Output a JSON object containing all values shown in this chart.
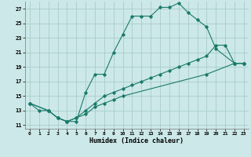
{
  "xlabel": "Humidex (Indice chaleur)",
  "bg_color": "#cce8e8",
  "grid_color": "#aacccc",
  "line_color": "#1a7a6a",
  "xlim": [
    -0.5,
    23.5
  ],
  "ylim": [
    10.5,
    28.0
  ],
  "yticks": [
    11,
    13,
    15,
    17,
    19,
    21,
    23,
    25,
    27
  ],
  "xticks": [
    0,
    1,
    2,
    3,
    4,
    5,
    6,
    7,
    8,
    9,
    10,
    11,
    12,
    13,
    14,
    15,
    16,
    17,
    18,
    19,
    20,
    21,
    22,
    23
  ],
  "line1_x": [
    0,
    1,
    2,
    3,
    4,
    5,
    6,
    7,
    8,
    9,
    10,
    11,
    12,
    13,
    14,
    15,
    16,
    17,
    18,
    19,
    20,
    22,
    23
  ],
  "line1_y": [
    14.0,
    13.0,
    13.0,
    12.0,
    11.5,
    11.5,
    15.5,
    18.0,
    18.0,
    21.0,
    23.5,
    26.0,
    26.0,
    26.0,
    27.2,
    27.2,
    27.8,
    26.5,
    25.5,
    24.5,
    21.5,
    19.5,
    19.5
  ],
  "line2_x": [
    0,
    2,
    3,
    4,
    5,
    6,
    7,
    8,
    9,
    10,
    11,
    12,
    13,
    14,
    15,
    16,
    17,
    18,
    19,
    20,
    21,
    22,
    23
  ],
  "line2_y": [
    14.0,
    13.0,
    12.0,
    11.5,
    12.0,
    13.0,
    14.0,
    15.0,
    15.5,
    16.0,
    16.5,
    17.0,
    17.5,
    18.0,
    18.5,
    19.0,
    19.5,
    20.0,
    20.5,
    22.0,
    22.0,
    19.5,
    19.5
  ],
  "line3_x": [
    0,
    2,
    3,
    4,
    5,
    6,
    7,
    8,
    9,
    10,
    19,
    22,
    23
  ],
  "line3_y": [
    14.0,
    13.0,
    12.0,
    11.5,
    12.0,
    12.5,
    13.5,
    14.0,
    14.5,
    15.0,
    18.0,
    19.5,
    19.5
  ]
}
